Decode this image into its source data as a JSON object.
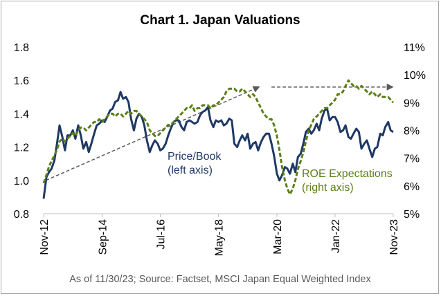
{
  "chart_data": {
    "type": "line",
    "title": "Chart 1. Japan Valuations",
    "source_note": "As of 11/30/23; Source: Factset, MSCI Japan Equal Weighted Index",
    "x_tick_labels": [
      "Nov-12",
      "Sep-14",
      "Jul-16",
      "May-18",
      "Mar-20",
      "Jan-22",
      "Nov-23"
    ],
    "x_tick_years": [
      2012.83,
      2014.67,
      2016.5,
      2018.33,
      2020.17,
      2022.0,
      2023.83
    ],
    "left_axis": {
      "ylim": [
        0.8,
        1.8
      ],
      "ticks": [
        "0.8",
        "1.0",
        "1.2",
        "1.4",
        "1.6",
        "1.8"
      ]
    },
    "right_axis": {
      "ylim": [
        5,
        11
      ],
      "ticks": [
        "5%",
        "6%",
        "7%",
        "8%",
        "9%",
        "10%",
        "11%"
      ]
    },
    "grid": false,
    "annotations": [
      {
        "lines": [
          "Price/Book",
          "(left axis)"
        ],
        "color": "#1f3864"
      },
      {
        "lines": [
          "ROE Expectations",
          "(right axis)"
        ],
        "color": "#5b7f16"
      }
    ],
    "arrows": [
      {
        "from": [
          2012.9,
          1.0
        ],
        "to": [
          2019.6,
          1.56
        ],
        "color": "#595959"
      },
      {
        "from": [
          2020.0,
          1.56
        ],
        "to": [
          2023.8,
          1.56
        ],
        "color": "#595959"
      }
    ],
    "series": [
      {
        "axis": "left",
        "color": "#1f3864",
        "style": "solid",
        "points": [
          [
            2012.83,
            0.89
          ],
          [
            2012.92,
            1.02
          ],
          [
            2013.0,
            1.05
          ],
          [
            2013.08,
            1.07
          ],
          [
            2013.17,
            1.12
          ],
          [
            2013.25,
            1.22
          ],
          [
            2013.33,
            1.33
          ],
          [
            2013.42,
            1.26
          ],
          [
            2013.5,
            1.18
          ],
          [
            2013.58,
            1.27
          ],
          [
            2013.67,
            1.27
          ],
          [
            2013.75,
            1.3
          ],
          [
            2013.83,
            1.25
          ],
          [
            2013.92,
            1.33
          ],
          [
            2014.0,
            1.27
          ],
          [
            2014.08,
            1.19
          ],
          [
            2014.17,
            1.23
          ],
          [
            2014.25,
            1.17
          ],
          [
            2014.33,
            1.22
          ],
          [
            2014.42,
            1.28
          ],
          [
            2014.5,
            1.33
          ],
          [
            2014.58,
            1.34
          ],
          [
            2014.67,
            1.36
          ],
          [
            2014.75,
            1.35
          ],
          [
            2014.83,
            1.38
          ],
          [
            2014.92,
            1.42
          ],
          [
            2015.0,
            1.43
          ],
          [
            2015.08,
            1.47
          ],
          [
            2015.17,
            1.48
          ],
          [
            2015.25,
            1.53
          ],
          [
            2015.33,
            1.49
          ],
          [
            2015.42,
            1.5
          ],
          [
            2015.5,
            1.47
          ],
          [
            2015.58,
            1.37
          ],
          [
            2015.67,
            1.3
          ],
          [
            2015.75,
            1.37
          ],
          [
            2015.83,
            1.4
          ],
          [
            2015.92,
            1.38
          ],
          [
            2016.0,
            1.33
          ],
          [
            2016.08,
            1.24
          ],
          [
            2016.17,
            1.17
          ],
          [
            2016.25,
            1.21
          ],
          [
            2016.33,
            1.24
          ],
          [
            2016.42,
            1.22
          ],
          [
            2016.5,
            1.18
          ],
          [
            2016.58,
            1.19
          ],
          [
            2016.67,
            1.22
          ],
          [
            2016.75,
            1.27
          ],
          [
            2016.83,
            1.31
          ],
          [
            2016.92,
            1.35
          ],
          [
            2017.0,
            1.36
          ],
          [
            2017.08,
            1.36
          ],
          [
            2017.17,
            1.32
          ],
          [
            2017.25,
            1.3
          ],
          [
            2017.33,
            1.35
          ],
          [
            2017.42,
            1.36
          ],
          [
            2017.5,
            1.35
          ],
          [
            2017.58,
            1.34
          ],
          [
            2017.67,
            1.35
          ],
          [
            2017.75,
            1.39
          ],
          [
            2017.83,
            1.41
          ],
          [
            2017.92,
            1.42
          ],
          [
            2018.0,
            1.44
          ],
          [
            2018.08,
            1.36
          ],
          [
            2018.17,
            1.32
          ],
          [
            2018.25,
            1.36
          ],
          [
            2018.33,
            1.35
          ],
          [
            2018.42,
            1.36
          ],
          [
            2018.5,
            1.33
          ],
          [
            2018.58,
            1.34
          ],
          [
            2018.67,
            1.37
          ],
          [
            2018.75,
            1.36
          ],
          [
            2018.83,
            1.22
          ],
          [
            2018.92,
            1.2
          ],
          [
            2019.0,
            1.24
          ],
          [
            2019.08,
            1.27
          ],
          [
            2019.17,
            1.24
          ],
          [
            2019.25,
            1.28
          ],
          [
            2019.33,
            1.19
          ],
          [
            2019.42,
            1.22
          ],
          [
            2019.5,
            1.23
          ],
          [
            2019.58,
            1.18
          ],
          [
            2019.67,
            1.23
          ],
          [
            2019.75,
            1.26
          ],
          [
            2019.83,
            1.28
          ],
          [
            2019.92,
            1.28
          ],
          [
            2020.0,
            1.22
          ],
          [
            2020.08,
            1.15
          ],
          [
            2020.17,
            1.04
          ],
          [
            2020.25,
            1.0
          ],
          [
            2020.33,
            1.03
          ],
          [
            2020.42,
            1.08
          ],
          [
            2020.5,
            1.07
          ],
          [
            2020.58,
            1.04
          ],
          [
            2020.67,
            1.1
          ],
          [
            2020.75,
            1.05
          ],
          [
            2020.83,
            1.14
          ],
          [
            2020.92,
            1.16
          ],
          [
            2021.0,
            1.22
          ],
          [
            2021.08,
            1.29
          ],
          [
            2021.17,
            1.31
          ],
          [
            2021.25,
            1.28
          ],
          [
            2021.33,
            1.3
          ],
          [
            2021.42,
            1.34
          ],
          [
            2021.5,
            1.3
          ],
          [
            2021.58,
            1.37
          ],
          [
            2021.67,
            1.42
          ],
          [
            2021.75,
            1.43
          ],
          [
            2021.83,
            1.36
          ],
          [
            2021.92,
            1.38
          ],
          [
            2022.0,
            1.38
          ],
          [
            2022.08,
            1.35
          ],
          [
            2022.17,
            1.29
          ],
          [
            2022.25,
            1.3
          ],
          [
            2022.33,
            1.33
          ],
          [
            2022.42,
            1.26
          ],
          [
            2022.5,
            1.25
          ],
          [
            2022.58,
            1.28
          ],
          [
            2022.67,
            1.31
          ],
          [
            2022.75,
            1.29
          ],
          [
            2022.83,
            1.19
          ],
          [
            2022.92,
            1.22
          ],
          [
            2023.0,
            1.24
          ],
          [
            2023.08,
            1.19
          ],
          [
            2023.17,
            1.14
          ],
          [
            2023.25,
            1.19
          ],
          [
            2023.33,
            1.2
          ],
          [
            2023.42,
            1.28
          ],
          [
            2023.5,
            1.27
          ],
          [
            2023.58,
            1.32
          ],
          [
            2023.67,
            1.35
          ],
          [
            2023.75,
            1.3
          ],
          [
            2023.83,
            1.29
          ]
        ]
      },
      {
        "axis": "right",
        "color": "#5b7f16",
        "style": "dashed",
        "points": [
          [
            2012.83,
            6.1
          ],
          [
            2012.92,
            6.4
          ],
          [
            2013.0,
            6.7
          ],
          [
            2013.08,
            6.9
          ],
          [
            2013.17,
            7.1
          ],
          [
            2013.25,
            7.3
          ],
          [
            2013.33,
            7.6
          ],
          [
            2013.42,
            7.7
          ],
          [
            2013.5,
            7.6
          ],
          [
            2013.58,
            7.7
          ],
          [
            2013.67,
            7.8
          ],
          [
            2013.75,
            7.9
          ],
          [
            2013.83,
            7.8
          ],
          [
            2013.92,
            8.0
          ],
          [
            2014.0,
            8.1
          ],
          [
            2014.08,
            8.1
          ],
          [
            2014.17,
            8.0
          ],
          [
            2014.25,
            8.1
          ],
          [
            2014.33,
            8.2
          ],
          [
            2014.42,
            8.3
          ],
          [
            2014.5,
            8.3
          ],
          [
            2014.58,
            8.4
          ],
          [
            2014.67,
            8.3
          ],
          [
            2014.75,
            8.4
          ],
          [
            2014.83,
            8.5
          ],
          [
            2014.92,
            8.6
          ],
          [
            2015.0,
            8.6
          ],
          [
            2015.08,
            8.5
          ],
          [
            2015.17,
            8.6
          ],
          [
            2015.25,
            8.6
          ],
          [
            2015.33,
            8.5
          ],
          [
            2015.42,
            8.6
          ],
          [
            2015.5,
            8.7
          ],
          [
            2015.58,
            8.6
          ],
          [
            2015.67,
            8.7
          ],
          [
            2015.75,
            8.7
          ],
          [
            2015.83,
            8.6
          ],
          [
            2015.92,
            8.5
          ],
          [
            2016.0,
            8.4
          ],
          [
            2016.08,
            8.3
          ],
          [
            2016.17,
            8.0
          ],
          [
            2016.25,
            7.9
          ],
          [
            2016.33,
            7.8
          ],
          [
            2016.42,
            7.8
          ],
          [
            2016.5,
            7.9
          ],
          [
            2016.58,
            8.0
          ],
          [
            2016.67,
            8.1
          ],
          [
            2016.75,
            8.2
          ],
          [
            2016.83,
            8.2
          ],
          [
            2016.92,
            8.3
          ],
          [
            2017.0,
            8.4
          ],
          [
            2017.08,
            8.5
          ],
          [
            2017.17,
            8.6
          ],
          [
            2017.25,
            8.7
          ],
          [
            2017.33,
            8.8
          ],
          [
            2017.42,
            8.8
          ],
          [
            2017.5,
            8.9
          ],
          [
            2017.58,
            8.7
          ],
          [
            2017.67,
            8.8
          ],
          [
            2017.75,
            8.8
          ],
          [
            2017.83,
            8.9
          ],
          [
            2017.92,
            8.9
          ],
          [
            2018.0,
            8.9
          ],
          [
            2018.08,
            8.8
          ],
          [
            2018.17,
            8.9
          ],
          [
            2018.25,
            8.9
          ],
          [
            2018.33,
            9.0
          ],
          [
            2018.42,
            9.1
          ],
          [
            2018.5,
            9.2
          ],
          [
            2018.58,
            9.4
          ],
          [
            2018.67,
            9.5
          ],
          [
            2018.75,
            9.5
          ],
          [
            2018.83,
            9.5
          ],
          [
            2018.92,
            9.4
          ],
          [
            2019.0,
            9.4
          ],
          [
            2019.08,
            9.5
          ],
          [
            2019.17,
            9.4
          ],
          [
            2019.25,
            9.3
          ],
          [
            2019.33,
            9.2
          ],
          [
            2019.42,
            9.3
          ],
          [
            2019.5,
            9.2
          ],
          [
            2019.58,
            9.0
          ],
          [
            2019.67,
            8.8
          ],
          [
            2019.75,
            8.6
          ],
          [
            2019.83,
            8.5
          ],
          [
            2019.92,
            8.4
          ],
          [
            2020.0,
            8.4
          ],
          [
            2020.08,
            8.2
          ],
          [
            2020.17,
            7.8
          ],
          [
            2020.25,
            7.3
          ],
          [
            2020.33,
            6.7
          ],
          [
            2020.42,
            6.2
          ],
          [
            2020.5,
            5.9
          ],
          [
            2020.58,
            5.7
          ],
          [
            2020.67,
            5.9
          ],
          [
            2020.75,
            6.2
          ],
          [
            2020.83,
            6.6
          ],
          [
            2020.92,
            6.9
          ],
          [
            2021.0,
            7.2
          ],
          [
            2021.08,
            7.6
          ],
          [
            2021.17,
            8.0
          ],
          [
            2021.25,
            8.2
          ],
          [
            2021.33,
            8.4
          ],
          [
            2021.42,
            8.5
          ],
          [
            2021.5,
            8.6
          ],
          [
            2021.58,
            8.7
          ],
          [
            2021.67,
            8.8
          ],
          [
            2021.75,
            8.8
          ],
          [
            2021.83,
            8.9
          ],
          [
            2021.92,
            9.0
          ],
          [
            2022.0,
            9.1
          ],
          [
            2022.08,
            9.3
          ],
          [
            2022.17,
            9.3
          ],
          [
            2022.25,
            9.4
          ],
          [
            2022.33,
            9.6
          ],
          [
            2022.42,
            9.8
          ],
          [
            2022.5,
            9.7
          ],
          [
            2022.58,
            9.6
          ],
          [
            2022.67,
            9.6
          ],
          [
            2022.75,
            9.5
          ],
          [
            2022.83,
            9.6
          ],
          [
            2022.92,
            9.5
          ],
          [
            2023.0,
            9.4
          ],
          [
            2023.08,
            9.3
          ],
          [
            2023.17,
            9.4
          ],
          [
            2023.25,
            9.3
          ],
          [
            2023.33,
            9.2
          ],
          [
            2023.42,
            9.3
          ],
          [
            2023.5,
            9.2
          ],
          [
            2023.58,
            9.2
          ],
          [
            2023.67,
            9.2
          ],
          [
            2023.75,
            9.1
          ],
          [
            2023.83,
            9.0
          ]
        ]
      }
    ]
  }
}
